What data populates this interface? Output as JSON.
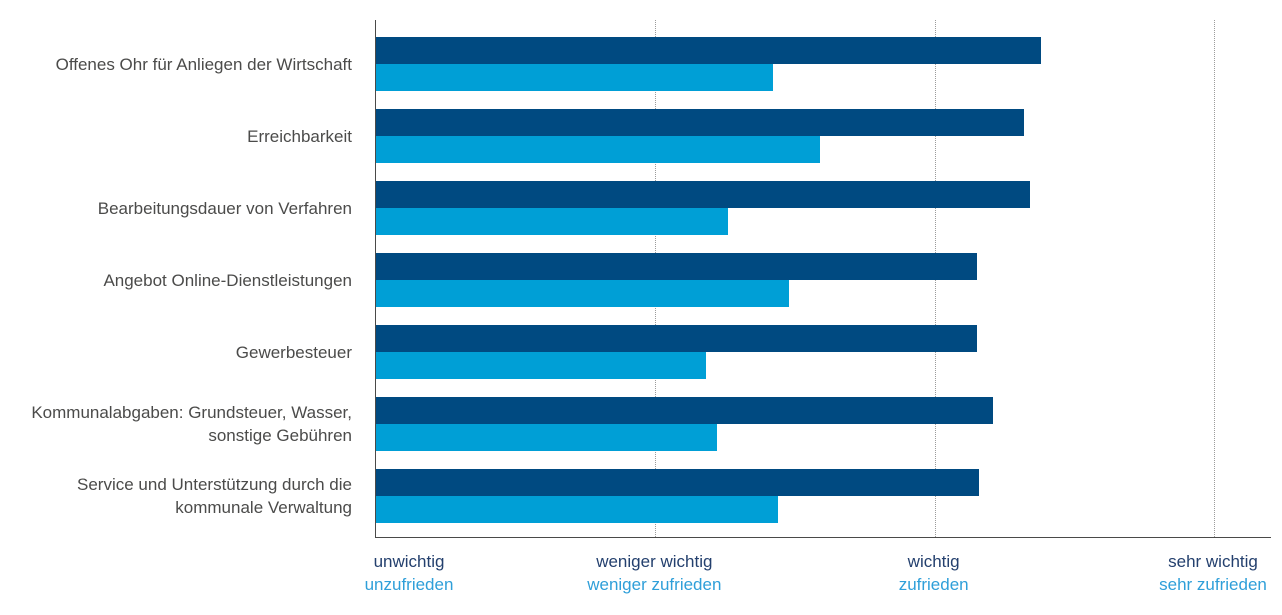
{
  "chart_data": {
    "type": "bar",
    "orientation": "horizontal",
    "title": "",
    "legend": "none",
    "grid": "vertical-dotted",
    "categories": [
      "Offenes Ohr für Anliegen der Wirtschaft",
      "Erreichbarkeit",
      "Bearbeitungsdauer von Verfahren",
      "Angebot Online-Dienstleistungen",
      "Gewerbesteuer",
      "Kommunalabgaben: Grundsteuer, Wasser,\nsonstige Gebühren",
      "Service und Unterstützung durch die\nkommunale Verwaltung"
    ],
    "series": [
      {
        "name": "wichtig",
        "color": "#004a81",
        "values": [
          3.38,
          3.32,
          3.34,
          3.15,
          3.15,
          3.21,
          3.16
        ]
      },
      {
        "name": "zufrieden",
        "color": "#009fd6",
        "values": [
          2.42,
          2.59,
          2.26,
          2.48,
          2.18,
          2.22,
          2.44
        ]
      }
    ],
    "x_axis": {
      "min": 1,
      "max": 4,
      "ticks": [
        {
          "value": 1,
          "line1": "unwichtig",
          "line2": "unzufrieden"
        },
        {
          "value": 2,
          "line1": "weniger wichtig",
          "line2": "weniger zufrieden"
        },
        {
          "value": 3,
          "line1": "wichtig",
          "line2": "zufrieden"
        },
        {
          "value": 4,
          "line1": "sehr wichtig",
          "line2": "sehr zufrieden"
        }
      ]
    }
  },
  "colors": {
    "bar_dark": "#004a81",
    "bar_light": "#009fd6",
    "tick_label_dark": "#24406e",
    "tick_label_light": "#2f9fd9",
    "category_text": "#4b4b4a",
    "gridline": "#9b9b9b",
    "axis": "#4a4a49"
  }
}
